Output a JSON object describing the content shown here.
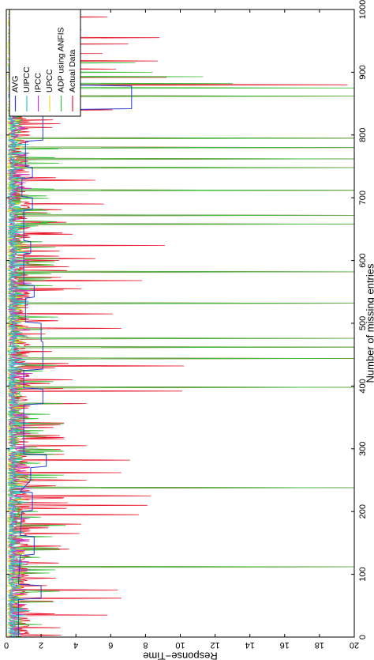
{
  "chart_data": {
    "type": "line",
    "orientation": "rotated-90-ccw",
    "xlabel": "Number of missing entries",
    "ylabel": "Response−Time",
    "xlim": [
      0,
      1000
    ],
    "ylim": [
      0,
      20
    ],
    "x_ticks": [
      "0",
      "100",
      "200",
      "300",
      "400",
      "500",
      "600",
      "700",
      "800",
      "900",
      "1000"
    ],
    "y_ticks": [
      "0",
      "2",
      "4",
      "6",
      "8",
      "10",
      "12",
      "14",
      "16",
      "18",
      "20"
    ],
    "legend_position": "top-left (rotated)",
    "grid": false,
    "series": [
      {
        "name": "Actual Data",
        "color": "#e8192c",
        "style": "spiky",
        "baseline": 0.6,
        "spikes": [
          [
            15,
            3.1
          ],
          [
            35,
            5.8
          ],
          [
            62,
            6.6
          ],
          [
            75,
            6.4
          ],
          [
            112,
            20
          ],
          [
            140,
            3.6
          ],
          [
            165,
            4.2
          ],
          [
            180,
            4.3
          ],
          [
            195,
            7.6
          ],
          [
            210,
            8.1
          ],
          [
            225,
            8.3
          ],
          [
            238,
            20
          ],
          [
            250,
            4.6
          ],
          [
            262,
            6.6
          ],
          [
            282,
            7.1
          ],
          [
            305,
            4.6
          ],
          [
            338,
            3.1
          ],
          [
            372,
            4.6
          ],
          [
            392,
            10.1
          ],
          [
            398,
            20
          ],
          [
            410,
            3.8
          ],
          [
            432,
            10.2
          ],
          [
            444,
            20
          ],
          [
            462,
            20
          ],
          [
            476,
            20
          ],
          [
            492,
            6.6
          ],
          [
            515,
            6.1
          ],
          [
            532,
            20
          ],
          [
            555,
            4.3
          ],
          [
            568,
            7.8
          ],
          [
            582,
            20
          ],
          [
            603,
            5.1
          ],
          [
            624,
            9.1
          ],
          [
            642,
            3.8
          ],
          [
            658,
            20
          ],
          [
            672,
            20
          ],
          [
            690,
            5.6
          ],
          [
            712,
            20
          ],
          [
            728,
            5.1
          ],
          [
            748,
            20
          ],
          [
            762,
            20
          ],
          [
            780,
            20
          ],
          [
            795,
            20
          ],
          [
            818,
            3.1
          ],
          [
            840,
            6.1
          ],
          [
            862,
            20
          ],
          [
            880,
            19.6
          ],
          [
            892,
            9.2
          ],
          [
            905,
            6.3
          ],
          [
            918,
            8.7
          ],
          [
            930,
            5.5
          ],
          [
            945,
            7.0
          ],
          [
            955,
            8.8
          ],
          [
            968,
            4.3
          ],
          [
            980,
            3.3
          ],
          [
            988,
            5.8
          ],
          [
            995,
            3.2
          ]
        ]
      },
      {
        "name": "ADP using ANFIS",
        "color": "#3bbf3b",
        "style": "spiky",
        "baseline": 0.4,
        "spikes": [
          [
            112,
            20
          ],
          [
            142,
            3.0
          ],
          [
            178,
            3.4
          ],
          [
            238,
            20
          ],
          [
            258,
            3.3
          ],
          [
            296,
            3.3
          ],
          [
            320,
            2.3
          ],
          [
            340,
            3.3
          ],
          [
            355,
            2.5
          ],
          [
            372,
            3.3
          ],
          [
            398,
            20
          ],
          [
            444,
            20
          ],
          [
            462,
            20
          ],
          [
            476,
            20
          ],
          [
            532,
            20
          ],
          [
            582,
            20
          ],
          [
            658,
            20
          ],
          [
            672,
            20
          ],
          [
            712,
            20
          ],
          [
            748,
            20
          ],
          [
            762,
            20
          ],
          [
            780,
            20
          ],
          [
            795,
            20
          ],
          [
            862,
            20
          ],
          [
            875,
            20
          ],
          [
            882,
            13.0
          ],
          [
            893,
            11.3
          ],
          [
            900,
            8.4
          ],
          [
            915,
            7.4
          ],
          [
            928,
            3.3
          ],
          [
            945,
            2.6
          ],
          [
            960,
            2.0
          ],
          [
            985,
            2.9
          ]
        ]
      },
      {
        "name": "UPCC",
        "color": "#e1e12a",
        "style": "noise",
        "baseline": 0.3,
        "spikes": [
          [
            250,
            1.3
          ],
          [
            400,
            1.5
          ],
          [
            860,
            1.4
          ],
          [
            905,
            1.6
          ],
          [
            960,
            1.2
          ]
        ]
      },
      {
        "name": "IPCC",
        "color": "#c83bc8",
        "style": "noise",
        "baseline": 0.6,
        "spikes": [
          [
            120,
            1.3
          ],
          [
            420,
            1.5
          ],
          [
            600,
            1.3
          ],
          [
            900,
            1.8
          ],
          [
            965,
            1.5
          ]
        ]
      },
      {
        "name": "UIPCC",
        "color": "#2fc7c7",
        "style": "noise",
        "baseline": 0.5,
        "spikes": [
          [
            230,
            1.1
          ],
          [
            480,
            1.2
          ],
          [
            880,
            1.6
          ],
          [
            950,
            1.3
          ]
        ]
      },
      {
        "name": "AVG",
        "color": "#2b3fcf",
        "style": "step",
        "steps": [
          [
            0,
            0.7
          ],
          [
            60,
            0.7
          ],
          [
            62,
            2.0
          ],
          [
            82,
            2.0
          ],
          [
            84,
            0.7
          ],
          [
            130,
            0.8
          ],
          [
            132,
            1.6
          ],
          [
            160,
            1.6
          ],
          [
            162,
            0.8
          ],
          [
            200,
            0.9
          ],
          [
            202,
            1.5
          ],
          [
            230,
            1.5
          ],
          [
            232,
            0.8
          ],
          [
            250,
            1.4
          ],
          [
            270,
            1.4
          ],
          [
            272,
            2.3
          ],
          [
            290,
            2.3
          ],
          [
            292,
            1.0
          ],
          [
            370,
            1.0
          ],
          [
            372,
            2.1
          ],
          [
            395,
            2.1
          ],
          [
            397,
            1.0
          ],
          [
            425,
            1.0
          ],
          [
            427,
            2.1
          ],
          [
            470,
            2.1
          ],
          [
            472,
            2.0
          ],
          [
            500,
            2.0
          ],
          [
            502,
            1.1
          ],
          [
            540,
            1.1
          ],
          [
            542,
            1.6
          ],
          [
            560,
            1.6
          ],
          [
            562,
            1.0
          ],
          [
            610,
            1.0
          ],
          [
            612,
            1.4
          ],
          [
            630,
            1.4
          ],
          [
            632,
            1.0
          ],
          [
            680,
            1.0
          ],
          [
            682,
            1.5
          ],
          [
            700,
            1.5
          ],
          [
            702,
            0.9
          ],
          [
            730,
            0.9
          ],
          [
            732,
            1.5
          ],
          [
            748,
            1.5
          ],
          [
            750,
            1.1
          ],
          [
            790,
            1.1
          ],
          [
            792,
            2.1
          ],
          [
            840,
            2.1
          ],
          [
            842,
            7.2
          ],
          [
            878,
            7.2
          ],
          [
            880,
            2.5
          ],
          [
            920,
            2.5
          ],
          [
            922,
            1.8
          ],
          [
            962,
            1.8
          ],
          [
            964,
            1.2
          ],
          [
            1000,
            1.2
          ]
        ]
      }
    ]
  }
}
